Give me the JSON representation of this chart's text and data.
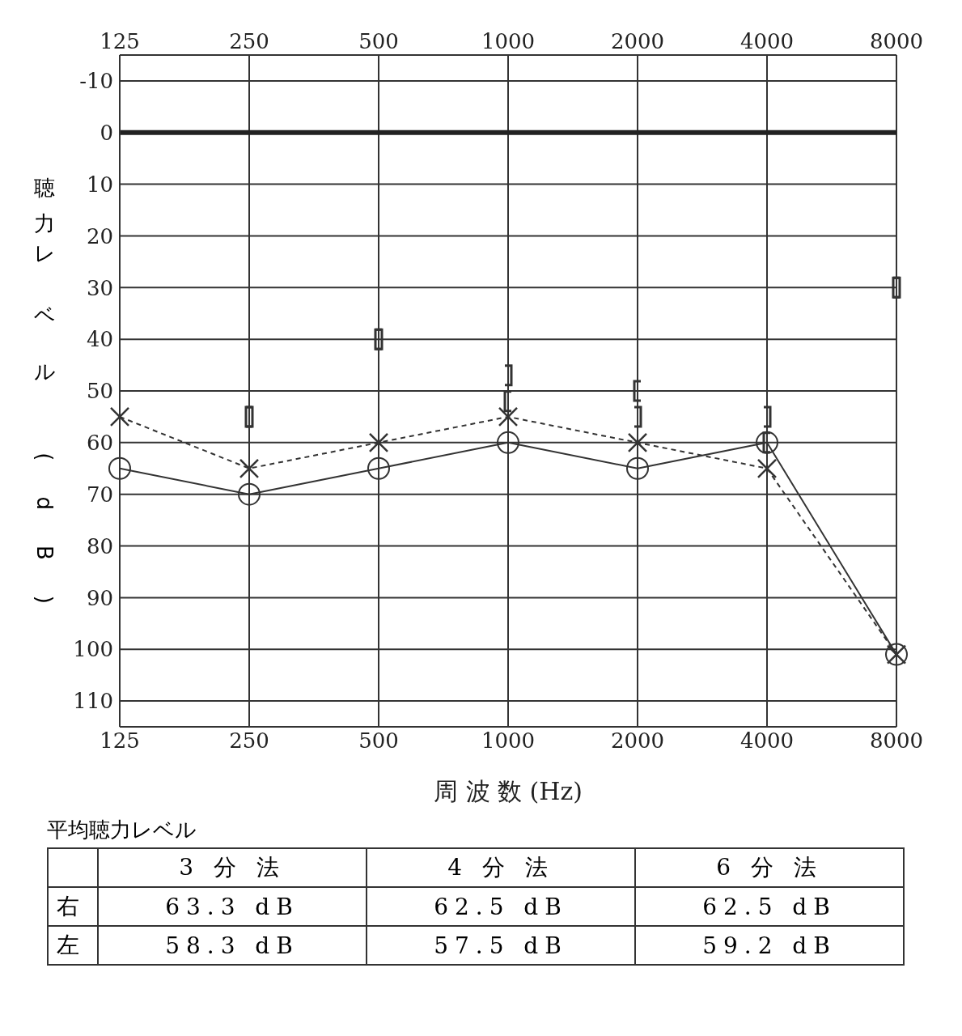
{
  "chart_data": [
    {
      "type": "line",
      "ylabel": "聴力レベル (dB)",
      "xlabel": "周 波 数 (Hz)",
      "categories": [
        "125",
        "250",
        "500",
        "1000",
        "2000",
        "4000",
        "8000"
      ],
      "series": [
        {
          "type": "line",
          "color": "#333333",
          "marker": "circle",
          "line_style": "solid",
          "values": [
            65,
            70,
            65,
            60,
            65,
            60,
            101
          ]
        },
        {
          "type": "line",
          "color": "#333333",
          "marker": "cross",
          "line_style": "dashed",
          "values": [
            55,
            65,
            60,
            55,
            60,
            65,
            101
          ]
        },
        {
          "type": "scatter",
          "color": "#333333",
          "values": [
            null,
            55,
            40,
            52,
            50,
            60,
            30
          ]
        },
        {
          "type": "scatter",
          "color": "#333333",
          "values": [
            null,
            55,
            40,
            47,
            55,
            55,
            30
          ]
        }
      ],
      "ylim": [
        115,
        -15
      ],
      "yticks": [
        -10,
        0,
        10,
        20,
        30,
        40,
        50,
        60,
        70,
        80,
        90,
        100,
        110
      ],
      "grid": true,
      "ref_lines": [
        {
          "axis": "y",
          "value": 0
        }
      ]
    },
    {
      "type": "other",
      "title": "平均聴力レベル",
      "categories": [
        "3 分 法",
        "4 分 法",
        "6 分 法"
      ],
      "y_categories": [
        "右",
        "左"
      ],
      "cell_labels": [
        [
          "63.3 dB",
          "62.5 dB",
          "62.5 dB"
        ],
        [
          "58.3 dB",
          "57.5 dB",
          "59.2 dB"
        ]
      ]
    }
  ]
}
